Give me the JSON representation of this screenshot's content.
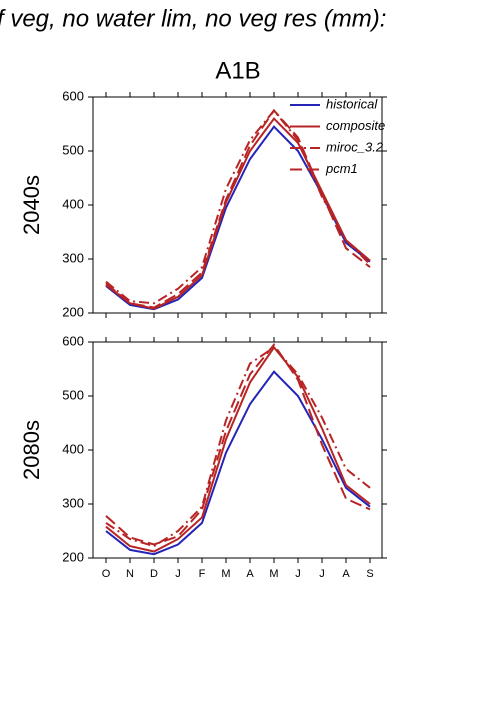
{
  "title": "f veg, no water lim, no veg res (mm):",
  "subtitle": "A1B",
  "chart_data": [
    {
      "type": "line",
      "ylabel": "2040s",
      "ylim": [
        200,
        600
      ],
      "yticks": [
        200,
        300,
        400,
        500,
        600
      ],
      "legend": "top-right",
      "series": [
        {
          "name": "historical",
          "color": "#2424b8",
          "style": "solid",
          "values": [
            250,
            215,
            207,
            225,
            265,
            395,
            485,
            545,
            500,
            420,
            330,
            295
          ]
        },
        {
          "name": "composite",
          "color": "#b82424",
          "style": "solid",
          "values": [
            252,
            218,
            208,
            230,
            270,
            405,
            500,
            560,
            515,
            425,
            335,
            297
          ]
        },
        {
          "name": "miroc_3.2",
          "color": "#b82424",
          "style": "dashdot",
          "values": [
            258,
            222,
            218,
            245,
            285,
            430,
            520,
            575,
            520,
            415,
            335,
            290
          ]
        },
        {
          "name": "pcm1",
          "color": "#b82424",
          "style": "dash",
          "values": [
            255,
            218,
            210,
            235,
            275,
            410,
            510,
            575,
            525,
            420,
            320,
            285
          ]
        }
      ]
    },
    {
      "type": "line",
      "ylabel": "2080s",
      "ylim": [
        200,
        600
      ],
      "yticks": [
        200,
        300,
        400,
        500,
        600
      ],
      "categories": [
        "O",
        "N",
        "D",
        "J",
        "F",
        "M",
        "A",
        "M",
        "J",
        "J",
        "A",
        "S"
      ],
      "series": [
        {
          "color": "#2424b8",
          "style": "solid",
          "values": [
            250,
            215,
            207,
            225,
            265,
            395,
            485,
            545,
            500,
            420,
            330,
            295
          ]
        },
        {
          "color": "#b82424",
          "style": "solid",
          "values": [
            258,
            222,
            212,
            235,
            275,
            420,
            525,
            590,
            535,
            440,
            335,
            300
          ]
        },
        {
          "color": "#b82424",
          "style": "dashdot",
          "values": [
            265,
            235,
            222,
            250,
            295,
            455,
            560,
            590,
            540,
            460,
            365,
            330
          ]
        },
        {
          "color": "#b82424",
          "style": "dash",
          "values": [
            278,
            238,
            225,
            240,
            290,
            435,
            540,
            595,
            530,
            410,
            310,
            290
          ]
        }
      ]
    }
  ]
}
